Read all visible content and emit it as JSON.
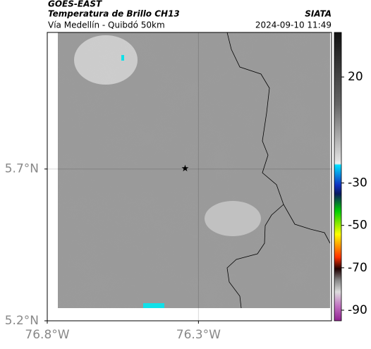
{
  "chart_data": {
    "type": "map",
    "title": "GOES-EAST",
    "subtitle": "Temperatura de Brillo CH13",
    "route": "Vía Medellín - Quibdó 50km",
    "source": "SIATA",
    "datetime": "2024-09-10 11:49",
    "xlim": [
      -76.8,
      -75.86
    ],
    "ylim": [
      5.2,
      6.15
    ],
    "xticks": [
      {
        "value": -76.8,
        "label": "76.8°W"
      },
      {
        "value": -76.3,
        "label": "76.3°W"
      }
    ],
    "yticks": [
      {
        "value": 5.2,
        "label": "5.2°N"
      },
      {
        "value": 5.7,
        "label": "5.7°N"
      }
    ],
    "grid": true,
    "marker": {
      "x": -76.344,
      "y": 5.7
    },
    "colorbar": {
      "lim": [
        -95,
        41
      ],
      "ticks": [
        20,
        -30,
        -50,
        -70,
        -90
      ]
    }
  }
}
